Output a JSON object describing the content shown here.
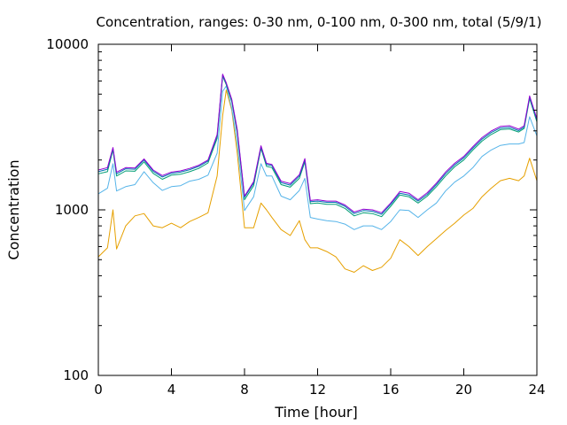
{
  "chart_data": {
    "type": "line",
    "title": "Concentration, ranges: 0-30 nm, 0-100 nm, 0-300 nm, total (5/9/1)",
    "xlabel": "Time [hour]",
    "ylabel": "Concentration",
    "xlim": [
      0,
      24
    ],
    "ylim": [
      100,
      10000
    ],
    "yscale": "log",
    "grid": false,
    "xticks": [
      0,
      4,
      8,
      12,
      16,
      20,
      24
    ],
    "xtick_labels": [
      "0",
      "4",
      "8",
      "12",
      "16",
      "20",
      "24"
    ],
    "yticks": [
      100,
      1000,
      10000
    ],
    "ytick_labels": [
      "100",
      "1000",
      "10000"
    ],
    "x": [
      0.0,
      0.5,
      0.8,
      1.0,
      1.5,
      2.0,
      2.5,
      3.0,
      3.5,
      4.0,
      4.5,
      5.0,
      5.5,
      6.0,
      6.5,
      6.8,
      7.0,
      7.3,
      7.6,
      8.0,
      8.5,
      8.9,
      9.2,
      9.5,
      10.0,
      10.5,
      11.0,
      11.3,
      11.6,
      12.0,
      12.5,
      13.0,
      13.5,
      14.0,
      14.5,
      15.0,
      15.5,
      16.0,
      16.5,
      17.0,
      17.5,
      18.0,
      18.5,
      19.0,
      19.5,
      20.0,
      20.5,
      21.0,
      21.5,
      22.0,
      22.5,
      23.0,
      23.3,
      23.6,
      24.0
    ],
    "series": [
      {
        "color": "#e6a000",
        "values": [
          520,
          590,
          1000,
          580,
          800,
          920,
          950,
          800,
          780,
          830,
          780,
          850,
          900,
          960,
          1600,
          3700,
          5300,
          4000,
          2200,
          780,
          780,
          1100,
          1000,
          900,
          760,
          700,
          860,
          660,
          590,
          590,
          560,
          520,
          440,
          420,
          460,
          430,
          450,
          510,
          660,
          600,
          530,
          600,
          670,
          750,
          830,
          930,
          1020,
          1200,
          1350,
          1500,
          1550,
          1500,
          1600,
          2050,
          1500
        ]
      },
      {
        "color": "#56b4e9",
        "values": [
          1250,
          1350,
          1900,
          1300,
          1380,
          1420,
          1700,
          1460,
          1310,
          1380,
          1400,
          1490,
          1530,
          1620,
          2200,
          5200,
          5600,
          4100,
          2500,
          990,
          1200,
          1900,
          1600,
          1600,
          1210,
          1150,
          1310,
          1550,
          900,
          880,
          860,
          850,
          820,
          760,
          800,
          800,
          760,
          850,
          1000,
          990,
          900,
          1000,
          1100,
          1300,
          1470,
          1600,
          1800,
          2100,
          2300,
          2450,
          2500,
          2500,
          2550,
          3650,
          2800
        ]
      },
      {
        "color": "#009e73",
        "values": [
          1650,
          1700,
          2300,
          1600,
          1720,
          1710,
          1950,
          1660,
          1530,
          1620,
          1640,
          1700,
          1780,
          1920,
          2700,
          6400,
          5700,
          4500,
          2900,
          1150,
          1400,
          2350,
          1830,
          1800,
          1420,
          1370,
          1550,
          1950,
          1090,
          1100,
          1080,
          1080,
          1020,
          920,
          960,
          950,
          910,
          1050,
          1230,
          1200,
          1100,
          1210,
          1380,
          1600,
          1820,
          2000,
          2300,
          2600,
          2850,
          3050,
          3080,
          2950,
          3100,
          4700,
          3400
        ]
      },
      {
        "color": "#0072b2",
        "values": [
          1700,
          1760,
          2350,
          1650,
          1770,
          1760,
          2000,
          1710,
          1580,
          1660,
          1690,
          1750,
          1830,
          1970,
          2800,
          6500,
          5800,
          4600,
          3000,
          1190,
          1450,
          2400,
          1880,
          1850,
          1460,
          1410,
          1600,
          2000,
          1120,
          1130,
          1110,
          1110,
          1050,
          950,
          990,
          980,
          940,
          1080,
          1260,
          1230,
          1130,
          1240,
          1420,
          1650,
          1870,
          2060,
          2360,
          2670,
          2930,
          3120,
          3150,
          3010,
          3160,
          4800,
          3480
        ]
      },
      {
        "color": "#9400d3",
        "values": [
          1740,
          1800,
          2380,
          1690,
          1800,
          1790,
          2030,
          1740,
          1610,
          1690,
          1720,
          1780,
          1860,
          2000,
          2850,
          6600,
          5850,
          4650,
          3050,
          1210,
          1480,
          2440,
          1910,
          1880,
          1490,
          1440,
          1630,
          2040,
          1140,
          1150,
          1130,
          1130,
          1070,
          970,
          1010,
          1000,
          960,
          1100,
          1290,
          1260,
          1150,
          1270,
          1450,
          1690,
          1910,
          2100,
          2410,
          2730,
          2990,
          3190,
          3220,
          3070,
          3220,
          4880,
          3550
        ]
      }
    ]
  }
}
